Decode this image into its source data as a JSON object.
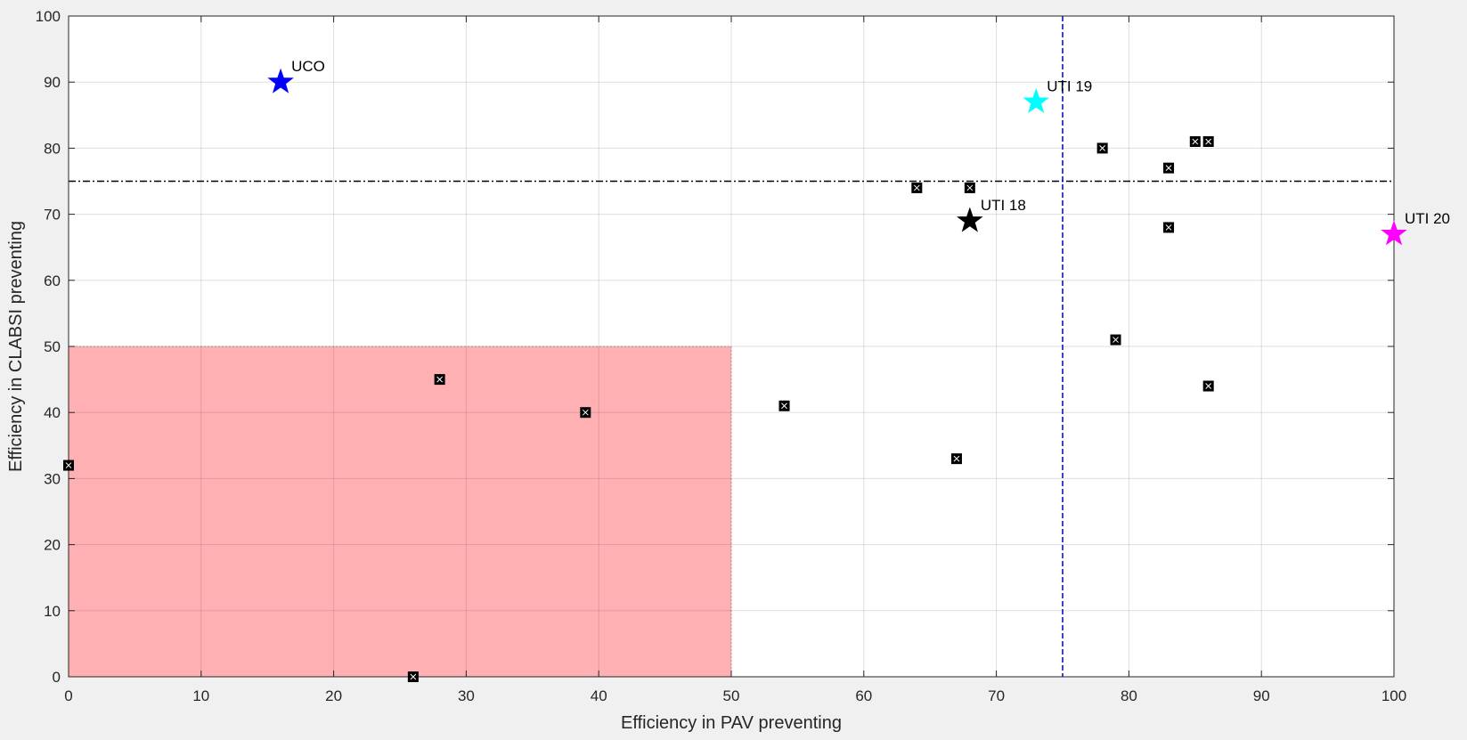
{
  "chart_data": {
    "type": "scatter",
    "xlabel": "Efficiency in PAV preventing",
    "ylabel": "Efficiency in CLABSI preventing",
    "xlim": [
      0,
      100
    ],
    "ylim": [
      0,
      100
    ],
    "xticks": [
      0,
      10,
      20,
      30,
      40,
      50,
      60,
      70,
      80,
      90,
      100
    ],
    "yticks": [
      0,
      10,
      20,
      30,
      40,
      50,
      60,
      70,
      80,
      90,
      100
    ],
    "grid": true,
    "shaded_region": {
      "x": [
        0,
        50
      ],
      "y": [
        0,
        50
      ],
      "color": "#ffb0b3"
    },
    "threshold_lines": [
      {
        "orientation": "horizontal",
        "value": 75,
        "style": "dash-dot",
        "color": "#000000"
      },
      {
        "orientation": "vertical",
        "value": 75,
        "style": "dashed",
        "color": "#0000cc"
      }
    ],
    "marker_points": [
      {
        "x": 0,
        "y": 32
      },
      {
        "x": 26,
        "y": 0
      },
      {
        "x": 28,
        "y": 45
      },
      {
        "x": 39,
        "y": 40
      },
      {
        "x": 54,
        "y": 41
      },
      {
        "x": 64,
        "y": 74
      },
      {
        "x": 67,
        "y": 33
      },
      {
        "x": 68,
        "y": 74
      },
      {
        "x": 78,
        "y": 80
      },
      {
        "x": 79,
        "y": 51
      },
      {
        "x": 83,
        "y": 77
      },
      {
        "x": 83,
        "y": 68
      },
      {
        "x": 85,
        "y": 81
      },
      {
        "x": 86,
        "y": 81
      },
      {
        "x": 86,
        "y": 44
      }
    ],
    "labeled_points": [
      {
        "label": "UCO",
        "x": 16,
        "y": 90,
        "color": "#0000ff"
      },
      {
        "label": "UTI 19",
        "x": 73,
        "y": 87,
        "color": "#00ffff"
      },
      {
        "label": "UTI 18",
        "x": 68,
        "y": 69,
        "color": "#000000"
      },
      {
        "label": "UTI 20",
        "x": 100,
        "y": 67,
        "color": "#ff00ff"
      }
    ]
  }
}
